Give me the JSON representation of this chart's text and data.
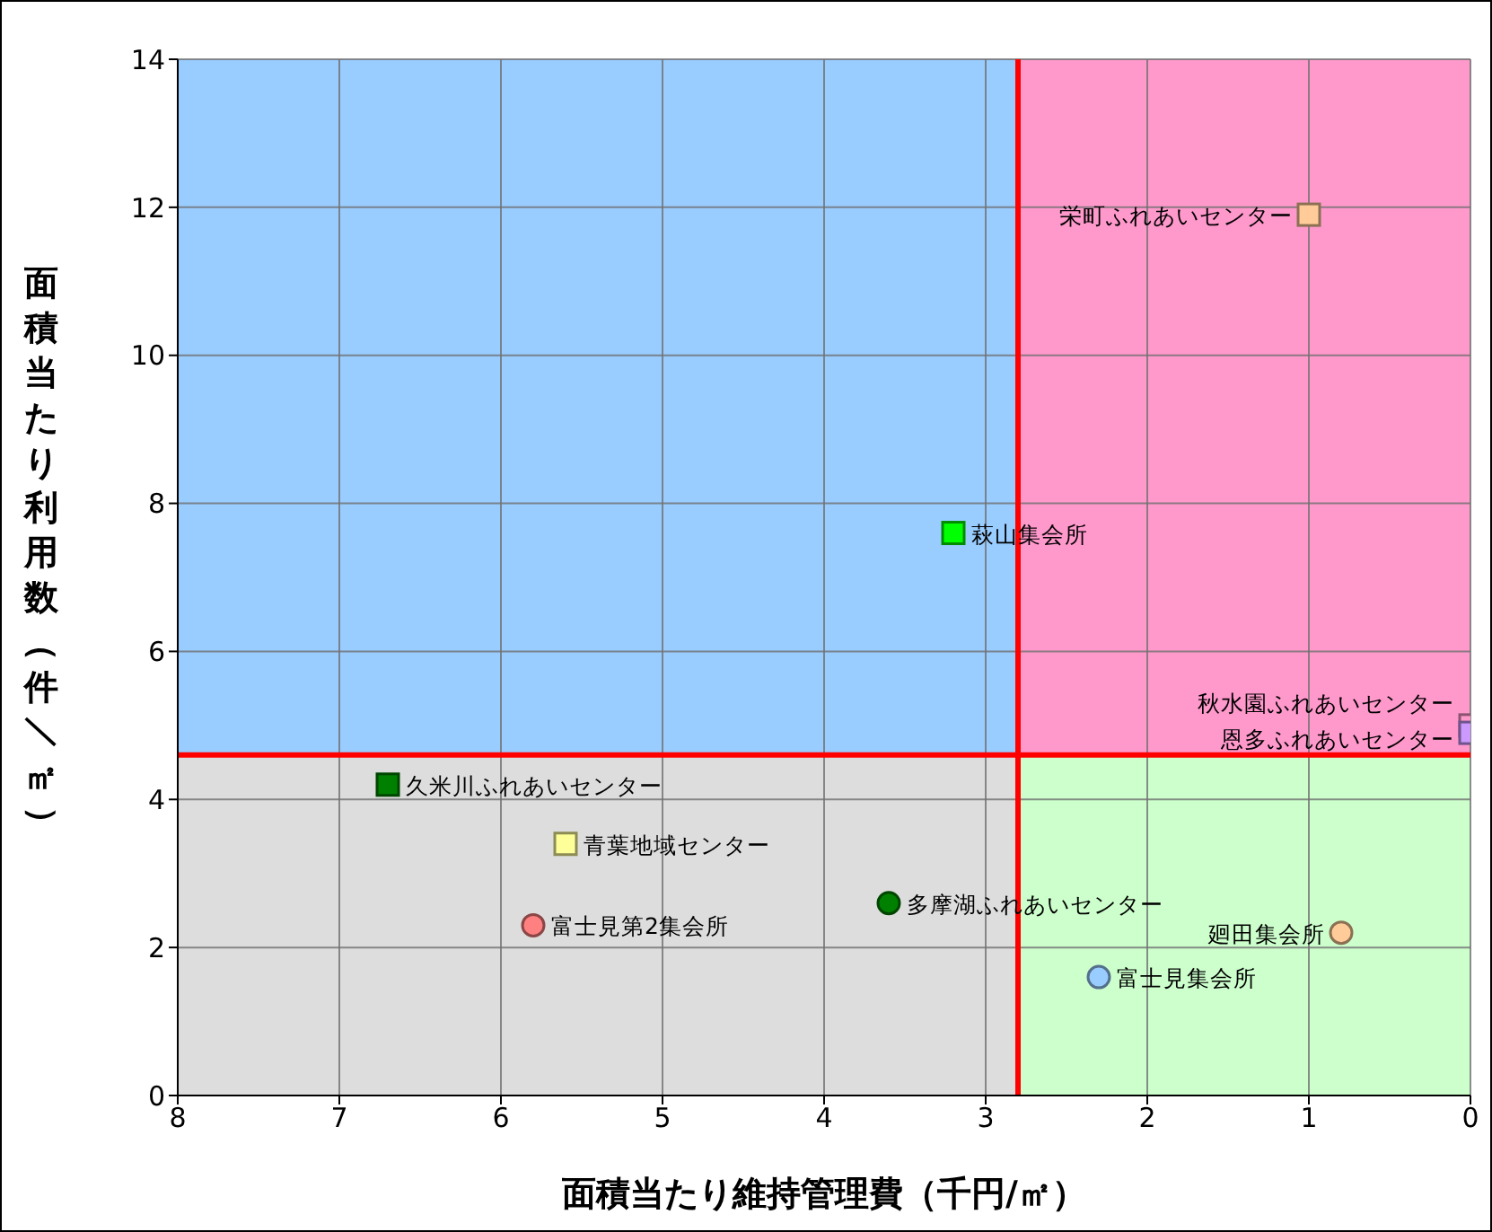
{
  "chart_data": {
    "type": "scatter",
    "xlabel": "面積当たり維持管理費（千円/㎡）",
    "ylabel": "面積当たり利用数（件／㎡）",
    "xlim": [
      8,
      0
    ],
    "xticks": [
      8,
      7,
      6,
      5,
      4,
      3,
      2,
      1,
      0
    ],
    "ylim": [
      0,
      14
    ],
    "yticks": [
      0,
      2,
      4,
      6,
      8,
      10,
      12,
      14
    ],
    "grid": true,
    "bands": [
      {
        "axis": "y",
        "from": 4.6,
        "to": 14,
        "color": "#99ccff"
      },
      {
        "axis": "y",
        "from": 0,
        "to": 4.6,
        "color": "#dddddd"
      },
      {
        "axis": "x",
        "from": 2.8,
        "to": 0,
        "color": "#ff99cc"
      },
      {
        "axis": "x",
        "from": 2.8,
        "to": 0,
        "color": "#ccffcc"
      }
    ],
    "ref_lines": [
      {
        "axis": "x",
        "value": 2.8,
        "color": "#ff0000"
      },
      {
        "axis": "y",
        "value": 4.6,
        "color": "#ff0000"
      }
    ],
    "series": [
      {
        "name": "栄町ふれあいセンター",
        "x": [
          1.0
        ],
        "values": [
          11.9
        ],
        "marker": "square",
        "color": "#ffcc99"
      },
      {
        "name": "萩山集会所",
        "x": [
          3.2
        ],
        "values": [
          7.6
        ],
        "marker": "square",
        "color": "#00ff00"
      },
      {
        "name": "秋水園ふれあいセンター",
        "x": [
          0
        ],
        "values": [
          5.0
        ],
        "marker": "square",
        "color": "#ff99cc"
      },
      {
        "name": "恩多ふれあいセンター",
        "x": [
          0
        ],
        "values": [
          4.9
        ],
        "marker": "square",
        "color": "#cc99ff"
      },
      {
        "name": "久米川ふれあいセンター",
        "x": [
          6.7
        ],
        "values": [
          4.2
        ],
        "marker": "square",
        "color": "#008000"
      },
      {
        "name": "青葉地域センター",
        "x": [
          5.6
        ],
        "values": [
          3.4
        ],
        "marker": "square",
        "color": "#ffff99"
      },
      {
        "name": "富士見第2集会所",
        "x": [
          5.8
        ],
        "values": [
          2.3
        ],
        "marker": "circle",
        "color": "#ff8080"
      },
      {
        "name": "多摩湖ふれあいセンター",
        "x": [
          3.6
        ],
        "values": [
          2.6
        ],
        "marker": "circle",
        "color": "#008000"
      },
      {
        "name": "富士見集会所",
        "x": [
          2.3
        ],
        "values": [
          1.6
        ],
        "marker": "circle",
        "color": "#99ccff"
      },
      {
        "name": "廻田集会所",
        "x": [
          0.8
        ],
        "values": [
          2.2
        ],
        "marker": "circle",
        "color": "#ffcc99"
      }
    ]
  }
}
